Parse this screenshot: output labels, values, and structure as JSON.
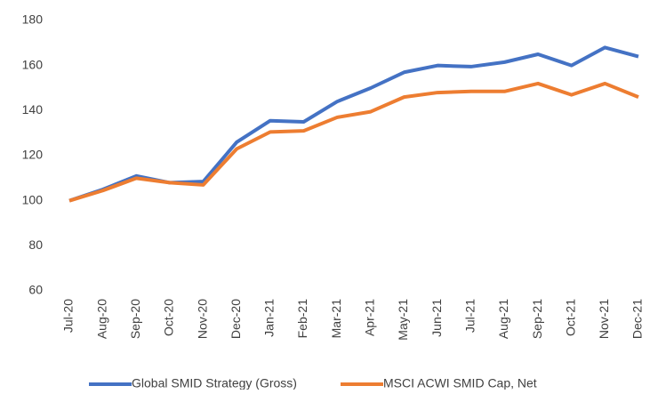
{
  "chart_data": {
    "type": "line",
    "categories": [
      "Jul-20",
      "Aug-20",
      "Sep-20",
      "Oct-20",
      "Nov-20",
      "Dec-20",
      "Jan-21",
      "Feb-21",
      "Mar-21",
      "Apr-21",
      "May-21",
      "Jun-21",
      "Jul-21",
      "Aug-21",
      "Sep-21",
      "Oct-21",
      "Nov-21",
      "Dec-21"
    ],
    "series": [
      {
        "name": "Global SMID Strategy (Gross)",
        "color": "#4472c4",
        "values": [
          100,
          105,
          111,
          108,
          108.5,
          126,
          135.5,
          135,
          144,
          150,
          157,
          160,
          159.5,
          161.5,
          165,
          160,
          168,
          164
        ]
      },
      {
        "name": "MSCI ACWI SMID Cap, Net",
        "color": "#ed7d31",
        "values": [
          100,
          104.5,
          110,
          108,
          107,
          123,
          130.5,
          131,
          137,
          139.5,
          146,
          148,
          148.5,
          148.5,
          152,
          147,
          152,
          146
        ]
      }
    ],
    "ylim": [
      60,
      180
    ],
    "yticks": [
      60,
      80,
      100,
      120,
      140,
      160,
      180
    ],
    "grid": false,
    "legend": "bottom"
  }
}
